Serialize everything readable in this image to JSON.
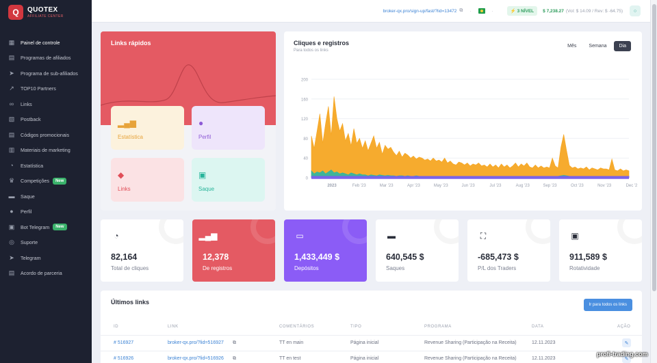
{
  "brand": {
    "name": "QUOTEX",
    "subtitle": "AFFILIATE CENTER"
  },
  "sidebar": {
    "items": [
      {
        "label": "Painel de controle",
        "icon": "dashboard-icon",
        "active": true
      },
      {
        "label": "Programas de afiliados",
        "icon": "folder-icon"
      },
      {
        "label": "Programa de sub-afiliados",
        "icon": "send-icon"
      },
      {
        "label": "TOP10 Partners",
        "icon": "trend-icon"
      },
      {
        "label": "Links",
        "icon": "link-icon"
      },
      {
        "label": "Postback",
        "icon": "box-icon"
      },
      {
        "label": "Códigos promocionais",
        "icon": "promo-icon"
      },
      {
        "label": "Materiais de marketing",
        "icon": "marketing-icon"
      },
      {
        "label": "Estatística",
        "icon": "pie-icon"
      },
      {
        "label": "Competições",
        "icon": "trophy-icon",
        "badge": "New"
      },
      {
        "label": "Saque",
        "icon": "wallet-icon"
      },
      {
        "label": "Perfil",
        "icon": "user-icon"
      },
      {
        "label": "Bot Telegram",
        "icon": "bot-icon",
        "badge": "New"
      },
      {
        "label": "Suporte",
        "icon": "headset-icon"
      },
      {
        "label": "Telegram",
        "icon": "telegram-icon"
      },
      {
        "label": "Acordo de parceria",
        "icon": "document-icon"
      }
    ]
  },
  "topbar": {
    "link": "broker-qx.pro/sign-up/fast/?lid=13472",
    "level": "3 NÍVEL",
    "balance": "$ 7,238.27",
    "balance_detail": "(Vol: $ 14.09 / Rev: $ -64.75)"
  },
  "quick_links": {
    "title": "Links rápidos",
    "tiles": [
      {
        "label": "Estatística",
        "icon": "bar-chart-icon"
      },
      {
        "label": "Perfil",
        "icon": "profile-icon"
      },
      {
        "label": "Links",
        "icon": "links-icon"
      },
      {
        "label": "Saque",
        "icon": "withdraw-icon"
      }
    ]
  },
  "chart_panel": {
    "title": "Cliques e registros",
    "subtitle": "Para todos os links",
    "tabs": [
      "Mês",
      "Semana",
      "Dia"
    ],
    "active_tab": "Dia"
  },
  "chart_data": {
    "type": "area",
    "ylim": [
      0,
      200
    ],
    "yticks": [
      0,
      40,
      80,
      120,
      160,
      200
    ],
    "x_labels": [
      "2023",
      "Feb '23",
      "Mar '23",
      "Apr '23",
      "May '23",
      "Jun '23",
      "Jul '23",
      "Aug '23",
      "Sep '23",
      "Oct '23",
      "Nov '23",
      "Dec '2"
    ],
    "colors": {
      "clicks": "#f5a623",
      "registrations": "#2ab5a5",
      "other": "#7c5cf0"
    },
    "series": [
      {
        "key": "clicks",
        "values": [
          85,
          60,
          95,
          130,
          70,
          110,
          145,
          85,
          165,
          120,
          95,
          110,
          75,
          90,
          65,
          100,
          70,
          80,
          60,
          75,
          55,
          70,
          85,
          60,
          72,
          48,
          66,
          58,
          62,
          52,
          45,
          54,
          42,
          50,
          46,
          40,
          44,
          38,
          42,
          40,
          36,
          38,
          34,
          40,
          34,
          36,
          32,
          40,
          30,
          34,
          28,
          26,
          32,
          30,
          26,
          30,
          24,
          28,
          26,
          30,
          24,
          26,
          22,
          28,
          22,
          26,
          20,
          28,
          22,
          26,
          20,
          24,
          30,
          22,
          28,
          24,
          30,
          22,
          20,
          26,
          20,
          24,
          20,
          22,
          20,
          40,
          24,
          20,
          62,
          88,
          55,
          25,
          20,
          22,
          18,
          20,
          18,
          22,
          16,
          20,
          18,
          16,
          20,
          18,
          18,
          16,
          38,
          16,
          14,
          18,
          14,
          16,
          14
        ]
      },
      {
        "key": "registrations",
        "values": [
          14,
          8,
          12,
          10,
          14,
          8,
          12,
          16,
          10,
          12,
          8,
          10,
          8,
          6,
          10,
          8,
          6,
          8,
          6,
          6,
          4,
          6,
          5,
          4,
          6,
          5,
          4,
          5,
          4,
          4,
          3,
          4,
          4,
          3,
          4,
          3,
          3,
          4,
          3,
          3,
          3,
          3,
          3,
          3,
          3,
          3,
          3,
          3,
          3,
          3,
          3,
          3,
          3,
          3,
          3,
          3,
          3,
          3,
          3,
          3,
          3,
          3,
          3,
          3,
          3,
          3,
          3,
          3,
          3,
          3,
          3,
          3,
          3,
          3,
          3,
          3,
          3,
          3,
          3,
          3,
          3,
          3,
          3,
          3,
          3,
          3,
          3,
          3,
          4,
          5,
          4,
          3,
          3,
          3,
          3,
          3,
          3,
          3,
          3,
          3,
          3,
          3,
          3,
          3,
          3,
          3,
          3,
          3,
          3,
          3,
          3,
          3,
          3
        ]
      },
      {
        "key": "other",
        "values": [
          3,
          3,
          3,
          3,
          3,
          3,
          3,
          3,
          3,
          3,
          3,
          3,
          3,
          3,
          3,
          3,
          3,
          3,
          3,
          3,
          3,
          3,
          3,
          3,
          3,
          3,
          3,
          3,
          3,
          3,
          3,
          3,
          3,
          3,
          3,
          3,
          3,
          3,
          3,
          3,
          3,
          3,
          3,
          3,
          3,
          3,
          3,
          3,
          3,
          3,
          3,
          3,
          3,
          3,
          3,
          3,
          3,
          3,
          3,
          3,
          3,
          3,
          3,
          3,
          3,
          3,
          3,
          3,
          3,
          3,
          3,
          3,
          3,
          3,
          3,
          3,
          3,
          3,
          3,
          3,
          3,
          3,
          3,
          3,
          3,
          3,
          3,
          3,
          3,
          3,
          3,
          3,
          3,
          3,
          3,
          3,
          3,
          3,
          3,
          3,
          3,
          3,
          3,
          3,
          3,
          3,
          3,
          3,
          3,
          3,
          3,
          3,
          3
        ]
      }
    ]
  },
  "stats": [
    {
      "value": "82,164",
      "label": "Total de cliques",
      "icon": "pie-chart-icon"
    },
    {
      "value": "12,378",
      "label": "De registros",
      "icon": "bar-chart-icon"
    },
    {
      "value": "1,433,449 $",
      "label": "Depósitos",
      "icon": "deposit-icon"
    },
    {
      "value": "640,545 $",
      "label": "Saques",
      "icon": "wallet-icon"
    },
    {
      "value": "-685,473 $",
      "label": "P/L dos Traders",
      "icon": "exchange-icon"
    },
    {
      "value": "911,589 $",
      "label": "Rotatividade",
      "icon": "safe-icon"
    }
  ],
  "links_table": {
    "title": "Últimos links",
    "button": "Ir para todos os links",
    "headers": [
      "ID",
      "LINK",
      "COMENTÁRIOS",
      "TIPO",
      "PROGRAMA",
      "DATA",
      "AÇÃO"
    ],
    "rows": [
      {
        "id": "# 516927",
        "link": "broker-qx.pro/?lid=516927",
        "comment": "TT en main",
        "type": "Página inicial",
        "program": "Revenue Sharing (Participação na Receita)",
        "date": "12.11.2023"
      },
      {
        "id": "# 516926",
        "link": "broker-qx.pro/?lid=516926",
        "comment": "TT en test",
        "type": "Página inicial",
        "program": "Revenue Sharing (Participação na Receita)",
        "date": "12.11.2023"
      }
    ]
  },
  "watermark": "profi-trading.com"
}
